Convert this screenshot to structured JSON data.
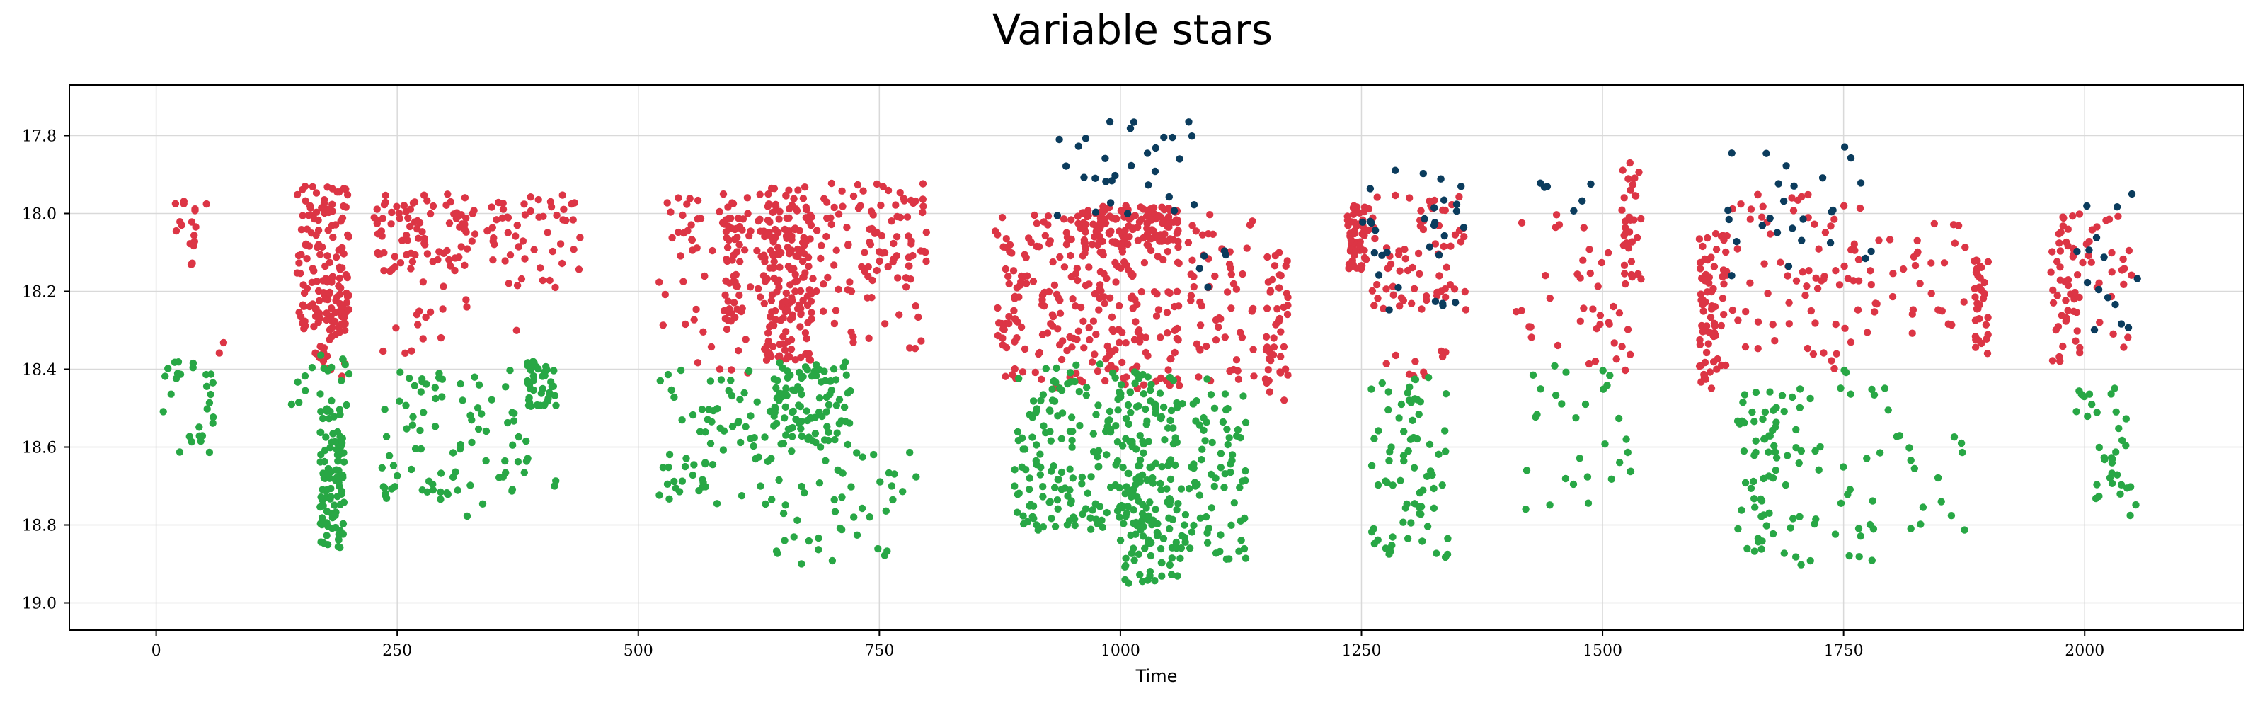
{
  "chart_data": {
    "type": "scatter",
    "title": "Variable stars",
    "xlabel": "Time",
    "ylabel": "",
    "xlim": [
      -90,
      2165
    ],
    "ylim": [
      19.07,
      17.67
    ],
    "y_inverted": true,
    "xticks": [
      0,
      250,
      500,
      750,
      1000,
      1250,
      1500,
      1750,
      2000
    ],
    "yticks": [
      17.8,
      18.0,
      18.2,
      18.4,
      18.6,
      18.8,
      19.0
    ],
    "grid": true,
    "legend": "none",
    "series": [
      {
        "color": "#dc3545",
        "clusters": [
          {
            "x": [
              15,
              55
            ],
            "y": [
              17.95,
              18.15
            ],
            "n": 18
          },
          {
            "x": [
              60,
              70
            ],
            "y": [
              18.3,
              18.36
            ],
            "n": 2
          },
          {
            "x": [
              145,
              200
            ],
            "y": [
              17.93,
              18.3
            ],
            "n": 120
          },
          {
            "x": [
              165,
              200
            ],
            "y": [
              18.2,
              18.42
            ],
            "n": 40
          },
          {
            "x": [
              225,
              320
            ],
            "y": [
              17.95,
              18.15
            ],
            "n": 80
          },
          {
            "x": [
              230,
              300
            ],
            "y": [
              18.15,
              18.4
            ],
            "n": 14
          },
          {
            "x": [
              320,
              440
            ],
            "y": [
              17.95,
              18.1
            ],
            "n": 50
          },
          {
            "x": [
              320,
              440
            ],
            "y": [
              18.1,
              18.32
            ],
            "n": 16
          },
          {
            "x": [
              520,
              640
            ],
            "y": [
              17.95,
              18.1
            ],
            "n": 40
          },
          {
            "x": [
              520,
              640
            ],
            "y": [
              18.1,
              18.42
            ],
            "n": 40
          },
          {
            "x": [
              590,
              605
            ],
            "y": [
              17.95,
              18.28
            ],
            "n": 35
          },
          {
            "x": [
              630,
              680
            ],
            "y": [
              17.93,
              18.38
            ],
            "n": 170
          },
          {
            "x": [
              680,
              800
            ],
            "y": [
              17.92,
              18.15
            ],
            "n": 80
          },
          {
            "x": [
              680,
              800
            ],
            "y": [
              18.15,
              18.35
            ],
            "n": 30
          },
          {
            "x": [
              870,
              960
            ],
            "y": [
              18.0,
              18.45
            ],
            "n": 120
          },
          {
            "x": [
              960,
              1060
            ],
            "y": [
              17.98,
              18.1
            ],
            "n": 140
          },
          {
            "x": [
              960,
              1060
            ],
            "y": [
              18.1,
              18.45
            ],
            "n": 110
          },
          {
            "x": [
              1060,
              1140
            ],
            "y": [
              18.0,
              18.45
            ],
            "n": 60
          },
          {
            "x": [
              1150,
              1175
            ],
            "y": [
              18.08,
              18.48
            ],
            "n": 45
          },
          {
            "x": [
              1235,
              1260
            ],
            "y": [
              17.98,
              18.15
            ],
            "n": 55
          },
          {
            "x": [
              1260,
              1360
            ],
            "y": [
              17.95,
              18.25
            ],
            "n": 70
          },
          {
            "x": [
              1270,
              1340
            ],
            "y": [
              18.35,
              18.45
            ],
            "n": 10
          },
          {
            "x": [
              1400,
              1470
            ],
            "y": [
              18.0,
              18.35
            ],
            "n": 12
          },
          {
            "x": [
              1470,
              1530
            ],
            "y": [
              18.0,
              18.42
            ],
            "n": 30
          },
          {
            "x": [
              1520,
              1540
            ],
            "y": [
              17.87,
              18.18
            ],
            "n": 30
          },
          {
            "x": [
              1600,
              1630
            ],
            "y": [
              18.05,
              18.45
            ],
            "n": 80
          },
          {
            "x": [
              1630,
              1780
            ],
            "y": [
              17.95,
              18.4
            ],
            "n": 75
          },
          {
            "x": [
              1780,
              1880
            ],
            "y": [
              18.0,
              18.35
            ],
            "n": 30
          },
          {
            "x": [
              1885,
              1900
            ],
            "y": [
              18.12,
              18.38
            ],
            "n": 35
          },
          {
            "x": [
              1965,
              1995
            ],
            "y": [
              18.0,
              18.38
            ],
            "n": 50
          },
          {
            "x": [
              1995,
              2055
            ],
            "y": [
              18.0,
              18.35
            ],
            "n": 25
          }
        ]
      },
      {
        "color": "#28a745",
        "clusters": [
          {
            "x": [
              5,
              60
            ],
            "y": [
              18.37,
              18.62
            ],
            "n": 28
          },
          {
            "x": [
              140,
              200
            ],
            "y": [
              18.36,
              18.5
            ],
            "n": 18
          },
          {
            "x": [
              170,
              195
            ],
            "y": [
              18.5,
              18.86
            ],
            "n": 100
          },
          {
            "x": [
              225,
              300
            ],
            "y": [
              18.4,
              18.75
            ],
            "n": 45
          },
          {
            "x": [
              300,
              390
            ],
            "y": [
              18.4,
              18.78
            ],
            "n": 45
          },
          {
            "x": [
              385,
              415
            ],
            "y": [
              18.38,
              18.5
            ],
            "n": 40
          },
          {
            "x": [
              410,
              420
            ],
            "y": [
              18.68,
              18.7
            ],
            "n": 2
          },
          {
            "x": [
              520,
              640
            ],
            "y": [
              18.4,
              18.75
            ],
            "n": 70
          },
          {
            "x": [
              640,
              720
            ],
            "y": [
              18.38,
              18.6
            ],
            "n": 100
          },
          {
            "x": [
              640,
              790
            ],
            "y": [
              18.6,
              18.9
            ],
            "n": 45
          },
          {
            "x": [
              890,
              1000
            ],
            "y": [
              18.38,
              18.82
            ],
            "n": 150
          },
          {
            "x": [
              1000,
              1060
            ],
            "y": [
              18.4,
              18.95
            ],
            "n": 170
          },
          {
            "x": [
              1060,
              1130
            ],
            "y": [
              18.42,
              18.9
            ],
            "n": 80
          },
          {
            "x": [
              1260,
              1340
            ],
            "y": [
              18.42,
              18.9
            ],
            "n": 75
          },
          {
            "x": [
              1420,
              1540
            ],
            "y": [
              18.38,
              18.77
            ],
            "n": 30
          },
          {
            "x": [
              1640,
              1680
            ],
            "y": [
              18.45,
              18.87
            ],
            "n": 50
          },
          {
            "x": [
              1680,
              1800
            ],
            "y": [
              18.4,
              18.91
            ],
            "n": 50
          },
          {
            "x": [
              1800,
              1880
            ],
            "y": [
              18.5,
              18.82
            ],
            "n": 15
          },
          {
            "x": [
              1990,
              2055
            ],
            "y": [
              18.42,
              18.83
            ],
            "n": 35
          }
        ]
      },
      {
        "color": "#0b3c5d",
        "clusters": [
          {
            "x": [
              930,
              1080
            ],
            "y": [
              17.76,
              18.02
            ],
            "n": 30
          },
          {
            "x": [
              1080,
              1110
            ],
            "y": [
              18.08,
              18.2
            ],
            "n": 5
          },
          {
            "x": [
              1250,
              1360
            ],
            "y": [
              17.88,
              18.26
            ],
            "n": 30
          },
          {
            "x": [
              1430,
              1490
            ],
            "y": [
              17.88,
              18.02
            ],
            "n": 6
          },
          {
            "x": [
              1630,
              1780
            ],
            "y": [
              17.82,
              18.16
            ],
            "n": 26
          },
          {
            "x": [
              1990,
              2055
            ],
            "y": [
              17.88,
              18.36
            ],
            "n": 15
          }
        ]
      }
    ]
  }
}
